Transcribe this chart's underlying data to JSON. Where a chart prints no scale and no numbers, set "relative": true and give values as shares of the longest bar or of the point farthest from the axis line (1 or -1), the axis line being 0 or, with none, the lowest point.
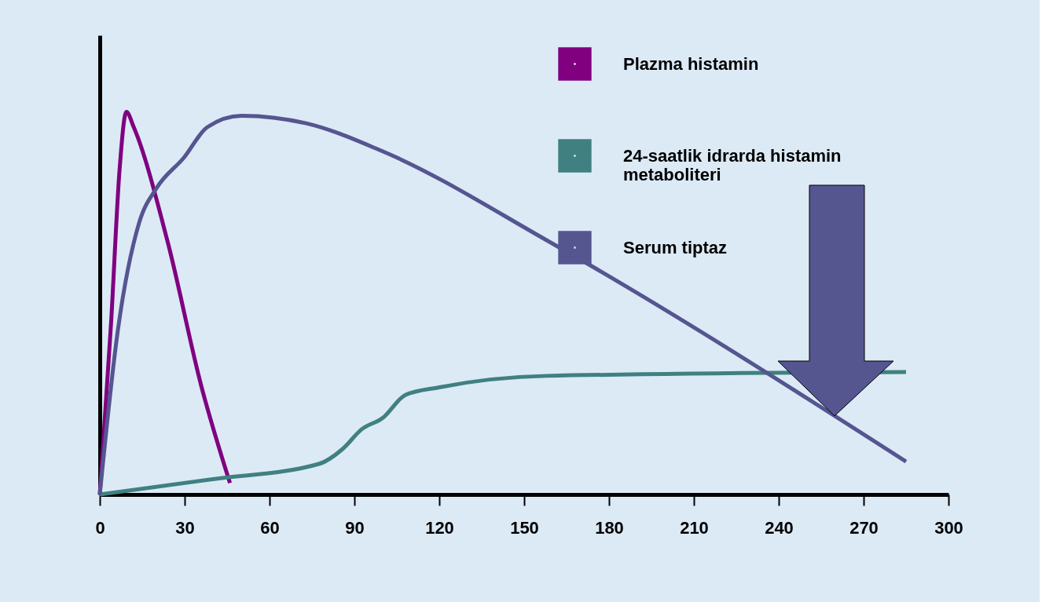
{
  "chart_data": {
    "type": "line",
    "relative": true,
    "legend": "top right",
    "grid": false,
    "marker": "none",
    "line_style": "solid",
    "xlim": [
      0,
      300
    ],
    "xticks": [
      0,
      30,
      60,
      90,
      120,
      150,
      180,
      210,
      240,
      270,
      300
    ],
    "series": [
      {
        "name": "Plazma histamin",
        "color": "#800080",
        "x": [
          0,
          4,
          7,
          9.4,
          12,
          24,
          36,
          46
        ],
        "values": [
          0,
          0.45,
          0.85,
          1,
          0.96,
          0.66,
          0.28,
          0.03
        ]
      },
      {
        "name": "24-saatlik idrarda histamin\nmetaboliteri",
        "color": "#408080",
        "x": [
          0,
          40,
          77.5,
          86,
          92.5,
          100,
          108,
          120,
          158,
          285
        ],
        "values": [
          0,
          0.04,
          0.08,
          0.12,
          0.17,
          0.2,
          0.26,
          0.28,
          0.31,
          0.32
        ]
      },
      {
        "name": "Serum tiptaz",
        "color": "#555590",
        "x": [
          0,
          6.4,
          13.9,
          20,
          29.7,
          38,
          50,
          73,
          99,
          159,
          285
        ],
        "values": [
          0,
          0.43,
          0.71,
          0.8,
          0.88,
          0.96,
          0.99,
          0.97,
          0.9,
          0.66,
          0.086
        ]
      }
    ]
  }
}
